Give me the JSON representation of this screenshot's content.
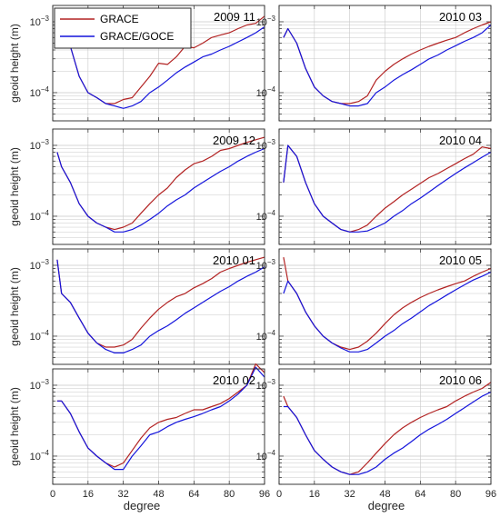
{
  "colors": {
    "grace": "#b22222",
    "grace_goce": "#1414dc",
    "grid": "#c9c9c9",
    "axis": "#262626"
  },
  "legend": {
    "labels": [
      "GRACE",
      "GRACE/GOCE"
    ]
  },
  "labels": {
    "xlabel": "degree",
    "ylabel": "geoid height (m)"
  },
  "chart_data": [
    {
      "type": "line",
      "title": "2009 11",
      "xlabel": "",
      "ylabel": "geoid height (m)",
      "xlim": [
        0,
        96
      ],
      "ylim": [
        4e-05,
        0.0017
      ],
      "yscale": "log",
      "grid": true,
      "series": [
        {
          "name": "GRACE",
          "x": [
            2,
            4,
            8,
            12,
            16,
            20,
            24,
            28,
            32,
            36,
            40,
            44,
            48,
            52,
            56,
            60,
            64,
            68,
            72,
            76,
            80,
            84,
            88,
            92,
            96
          ],
          "values": [
            0.0006,
            0.00075,
            0.00045,
            0.00017,
            0.0001,
            8.5e-05,
            7e-05,
            7e-05,
            8e-05,
            8.5e-05,
            0.00012,
            0.00017,
            0.00026,
            0.00025,
            0.00032,
            0.00045,
            0.00043,
            0.0005,
            0.0006,
            0.00065,
            0.0007,
            0.0008,
            0.0009,
            0.00095,
            0.0012
          ]
        },
        {
          "name": "GRACE/GOCE",
          "x": [
            2,
            4,
            8,
            12,
            16,
            20,
            24,
            28,
            32,
            36,
            40,
            44,
            48,
            52,
            56,
            60,
            64,
            68,
            72,
            76,
            80,
            84,
            88,
            92,
            96
          ],
          "values": [
            0.0006,
            0.00075,
            0.00045,
            0.00017,
            0.0001,
            8.5e-05,
            7e-05,
            6.5e-05,
            6e-05,
            6.5e-05,
            7.5e-05,
            0.0001,
            0.00012,
            0.00015,
            0.00019,
            0.00023,
            0.00027,
            0.00032,
            0.00035,
            0.0004,
            0.00045,
            0.00052,
            0.0006,
            0.0007,
            0.00085
          ]
        }
      ]
    },
    {
      "type": "line",
      "title": "2010 03",
      "xlabel": "",
      "ylabel": "",
      "xlim": [
        0,
        96
      ],
      "ylim": [
        4e-05,
        0.0017
      ],
      "yscale": "log",
      "grid": true,
      "series": [
        {
          "name": "GRACE",
          "x": [
            2,
            4,
            8,
            12,
            16,
            20,
            24,
            28,
            32,
            36,
            40,
            44,
            48,
            52,
            56,
            60,
            64,
            68,
            72,
            76,
            80,
            84,
            88,
            92,
            96
          ],
          "values": [
            0.0006,
            0.0008,
            0.0005,
            0.00022,
            0.00012,
            9e-05,
            7.5e-05,
            7e-05,
            7e-05,
            7.5e-05,
            9e-05,
            0.00015,
            0.0002,
            0.00025,
            0.0003,
            0.00035,
            0.0004,
            0.00045,
            0.0005,
            0.00055,
            0.0006,
            0.0007,
            0.0008,
            0.0009,
            0.001
          ]
        },
        {
          "name": "GRACE/GOCE",
          "x": [
            2,
            4,
            8,
            12,
            16,
            20,
            24,
            28,
            32,
            36,
            40,
            44,
            48,
            52,
            56,
            60,
            64,
            68,
            72,
            76,
            80,
            84,
            88,
            92,
            96
          ],
          "values": [
            0.0006,
            0.0008,
            0.0005,
            0.00022,
            0.00012,
            9e-05,
            7.5e-05,
            7e-05,
            6.5e-05,
            6.5e-05,
            7e-05,
            0.0001,
            0.00012,
            0.00015,
            0.00018,
            0.00021,
            0.00025,
            0.0003,
            0.00034,
            0.0004,
            0.00046,
            0.00053,
            0.0006,
            0.0007,
            0.0009
          ]
        }
      ]
    },
    {
      "type": "line",
      "title": "2009 12",
      "xlabel": "",
      "ylabel": "geoid height (m)",
      "xlim": [
        0,
        96
      ],
      "ylim": [
        4e-05,
        0.0017
      ],
      "yscale": "log",
      "grid": true,
      "series": [
        {
          "name": "GRACE",
          "x": [
            2,
            4,
            8,
            12,
            16,
            20,
            24,
            28,
            32,
            36,
            40,
            44,
            48,
            52,
            56,
            60,
            64,
            68,
            72,
            76,
            80,
            84,
            88,
            92,
            96
          ],
          "values": [
            0.0008,
            0.0005,
            0.0003,
            0.00015,
            0.0001,
            8e-05,
            7e-05,
            6.5e-05,
            7e-05,
            8e-05,
            0.00011,
            0.00015,
            0.0002,
            0.00025,
            0.00035,
            0.00045,
            0.00055,
            0.0006,
            0.0007,
            0.00085,
            0.0009,
            0.001,
            0.0011,
            0.0012,
            0.0013
          ]
        },
        {
          "name": "GRACE/GOCE",
          "x": [
            2,
            4,
            8,
            12,
            16,
            20,
            24,
            28,
            32,
            36,
            40,
            44,
            48,
            52,
            56,
            60,
            64,
            68,
            72,
            76,
            80,
            84,
            88,
            92,
            96
          ],
          "values": [
            0.0008,
            0.0005,
            0.0003,
            0.00015,
            0.0001,
            8e-05,
            7e-05,
            6e-05,
            6e-05,
            6.5e-05,
            7.5e-05,
            9e-05,
            0.00011,
            0.00014,
            0.00017,
            0.0002,
            0.00025,
            0.0003,
            0.00036,
            0.00043,
            0.0005,
            0.0006,
            0.0007,
            0.0008,
            0.0009
          ]
        }
      ]
    },
    {
      "type": "line",
      "title": "2010 04",
      "xlabel": "",
      "ylabel": "",
      "xlim": [
        0,
        96
      ],
      "ylim": [
        4e-05,
        0.0017
      ],
      "yscale": "log",
      "grid": true,
      "series": [
        {
          "name": "GRACE",
          "x": [
            2,
            4,
            8,
            12,
            16,
            20,
            24,
            28,
            32,
            36,
            40,
            44,
            48,
            52,
            56,
            60,
            64,
            68,
            72,
            76,
            80,
            84,
            88,
            92,
            96
          ],
          "values": [
            0.0003,
            0.001,
            0.0007,
            0.0003,
            0.00015,
            0.0001,
            8e-05,
            6.5e-05,
            6e-05,
            6.5e-05,
            7.5e-05,
            0.0001,
            0.00013,
            0.00016,
            0.0002,
            0.00024,
            0.00029,
            0.00035,
            0.0004,
            0.00047,
            0.00055,
            0.00065,
            0.00075,
            0.00095,
            0.0009
          ]
        },
        {
          "name": "GRACE/GOCE",
          "x": [
            2,
            4,
            8,
            12,
            16,
            20,
            24,
            28,
            32,
            36,
            40,
            44,
            48,
            52,
            56,
            60,
            64,
            68,
            72,
            76,
            80,
            84,
            88,
            92,
            96
          ],
          "values": [
            0.0003,
            0.001,
            0.0007,
            0.0003,
            0.00015,
            0.0001,
            8e-05,
            6.5e-05,
            6e-05,
            6e-05,
            6.2e-05,
            7e-05,
            8e-05,
            0.0001,
            0.00012,
            0.00015,
            0.00018,
            0.00022,
            0.00027,
            0.00033,
            0.0004,
            0.00048,
            0.00057,
            0.00068,
            0.0008
          ]
        }
      ]
    },
    {
      "type": "line",
      "title": "2010 01",
      "xlabel": "",
      "ylabel": "geoid height (m)",
      "xlim": [
        0,
        96
      ],
      "ylim": [
        4e-05,
        0.0017
      ],
      "yscale": "log",
      "grid": true,
      "series": [
        {
          "name": "GRACE",
          "x": [
            2,
            4,
            8,
            12,
            16,
            20,
            24,
            28,
            32,
            36,
            40,
            44,
            48,
            52,
            56,
            60,
            64,
            68,
            72,
            76,
            80,
            84,
            88,
            92,
            96
          ],
          "values": [
            0.0012,
            0.0004,
            0.0003,
            0.00018,
            0.00011,
            8e-05,
            7e-05,
            7e-05,
            7.5e-05,
            9e-05,
            0.00013,
            0.00018,
            0.00024,
            0.0003,
            0.00036,
            0.0004,
            0.00048,
            0.00055,
            0.00065,
            0.0008,
            0.0009,
            0.001,
            0.0011,
            0.0012,
            0.0013
          ]
        },
        {
          "name": "GRACE/GOCE",
          "x": [
            2,
            4,
            8,
            12,
            16,
            20,
            24,
            28,
            32,
            36,
            40,
            44,
            48,
            52,
            56,
            60,
            64,
            68,
            72,
            76,
            80,
            84,
            88,
            92,
            96
          ],
          "values": [
            0.0012,
            0.0004,
            0.0003,
            0.00018,
            0.00011,
            8e-05,
            6.5e-05,
            5.8e-05,
            5.8e-05,
            6.5e-05,
            7.5e-05,
            0.0001,
            0.00012,
            0.00014,
            0.00017,
            0.00021,
            0.00025,
            0.0003,
            0.00036,
            0.00043,
            0.0005,
            0.0006,
            0.0007,
            0.0008,
            0.00095
          ]
        }
      ]
    },
    {
      "type": "line",
      "title": "2010 05",
      "xlabel": "",
      "ylabel": "",
      "xlim": [
        0,
        96
      ],
      "ylim": [
        4e-05,
        0.0017
      ],
      "yscale": "log",
      "grid": true,
      "series": [
        {
          "name": "GRACE",
          "x": [
            2,
            4,
            8,
            12,
            16,
            20,
            24,
            28,
            32,
            36,
            40,
            44,
            48,
            52,
            56,
            60,
            64,
            68,
            72,
            76,
            80,
            84,
            88,
            92,
            96
          ],
          "values": [
            0.0013,
            0.0006,
            0.0004,
            0.00022,
            0.00014,
            0.0001,
            8e-05,
            7e-05,
            6.5e-05,
            7e-05,
            8.5e-05,
            0.00011,
            0.00015,
            0.0002,
            0.00025,
            0.0003,
            0.00035,
            0.0004,
            0.00045,
            0.0005,
            0.00055,
            0.0006,
            0.0007,
            0.0008,
            0.0009
          ]
        },
        {
          "name": "GRACE/GOCE",
          "x": [
            2,
            4,
            8,
            12,
            16,
            20,
            24,
            28,
            32,
            36,
            40,
            44,
            48,
            52,
            56,
            60,
            64,
            68,
            72,
            76,
            80,
            84,
            88,
            92,
            96
          ],
          "values": [
            0.0004,
            0.0006,
            0.0004,
            0.00022,
            0.00014,
            0.0001,
            8e-05,
            6.8e-05,
            6e-05,
            6e-05,
            6.5e-05,
            8e-05,
            0.0001,
            0.00012,
            0.00015,
            0.00018,
            0.00022,
            0.00027,
            0.00032,
            0.00038,
            0.00045,
            0.00053,
            0.00062,
            0.0007,
            0.0008
          ]
        }
      ]
    },
    {
      "type": "line",
      "title": "2010 02",
      "xlabel": "degree",
      "ylabel": "geoid height (m)",
      "xlim": [
        0,
        96
      ],
      "ylim": [
        4e-05,
        0.0017
      ],
      "yscale": "log",
      "grid": true,
      "series": [
        {
          "name": "GRACE",
          "x": [
            2,
            4,
            8,
            12,
            16,
            20,
            24,
            28,
            32,
            36,
            40,
            44,
            48,
            52,
            56,
            60,
            64,
            68,
            72,
            76,
            80,
            84,
            88,
            92,
            96
          ],
          "values": [
            0.0006,
            0.0006,
            0.0004,
            0.00022,
            0.00013,
            0.0001,
            8e-05,
            7e-05,
            8e-05,
            0.00012,
            0.00018,
            0.00025,
            0.0003,
            0.00033,
            0.00035,
            0.0004,
            0.00045,
            0.00045,
            0.0005,
            0.00055,
            0.00065,
            0.0008,
            0.001,
            0.002,
            0.0015
          ]
        },
        {
          "name": "GRACE/GOCE",
          "x": [
            2,
            4,
            8,
            12,
            16,
            20,
            24,
            28,
            32,
            36,
            40,
            44,
            48,
            52,
            56,
            60,
            64,
            68,
            72,
            76,
            80,
            84,
            88,
            92,
            96
          ],
          "values": [
            0.0006,
            0.0006,
            0.0004,
            0.00022,
            0.00013,
            0.0001,
            8e-05,
            6.5e-05,
            6.5e-05,
            0.0001,
            0.00014,
            0.0002,
            0.00022,
            0.00026,
            0.0003,
            0.00033,
            0.00036,
            0.0004,
            0.00045,
            0.0005,
            0.0006,
            0.00075,
            0.001,
            0.0018,
            0.0013
          ]
        }
      ]
    },
    {
      "type": "line",
      "title": "2010 06",
      "xlabel": "degree",
      "ylabel": "",
      "xlim": [
        0,
        96
      ],
      "ylim": [
        4e-05,
        0.0017
      ],
      "yscale": "log",
      "grid": true,
      "series": [
        {
          "name": "GRACE",
          "x": [
            2,
            4,
            8,
            12,
            16,
            20,
            24,
            28,
            32,
            36,
            40,
            44,
            48,
            52,
            56,
            60,
            64,
            68,
            72,
            76,
            80,
            84,
            88,
            92,
            96
          ],
          "values": [
            0.0007,
            0.0005,
            0.00035,
            0.0002,
            0.00012,
            9e-05,
            7e-05,
            6e-05,
            5.5e-05,
            6e-05,
            8e-05,
            0.00011,
            0.00015,
            0.0002,
            0.00025,
            0.0003,
            0.00035,
            0.0004,
            0.00045,
            0.0005,
            0.0006,
            0.0007,
            0.0008,
            0.0009,
            0.0011
          ]
        },
        {
          "name": "GRACE/GOCE",
          "x": [
            2,
            4,
            8,
            12,
            16,
            20,
            24,
            28,
            32,
            36,
            40,
            44,
            48,
            52,
            56,
            60,
            64,
            68,
            72,
            76,
            80,
            84,
            88,
            92,
            96
          ],
          "values": [
            0.0005,
            0.0005,
            0.00035,
            0.0002,
            0.00012,
            9e-05,
            7e-05,
            6e-05,
            5.5e-05,
            5.5e-05,
            6e-05,
            7e-05,
            9e-05,
            0.00011,
            0.00013,
            0.00016,
            0.0002,
            0.00024,
            0.00028,
            0.00033,
            0.0004,
            0.00048,
            0.00058,
            0.0007,
            0.0008
          ]
        }
      ]
    }
  ]
}
